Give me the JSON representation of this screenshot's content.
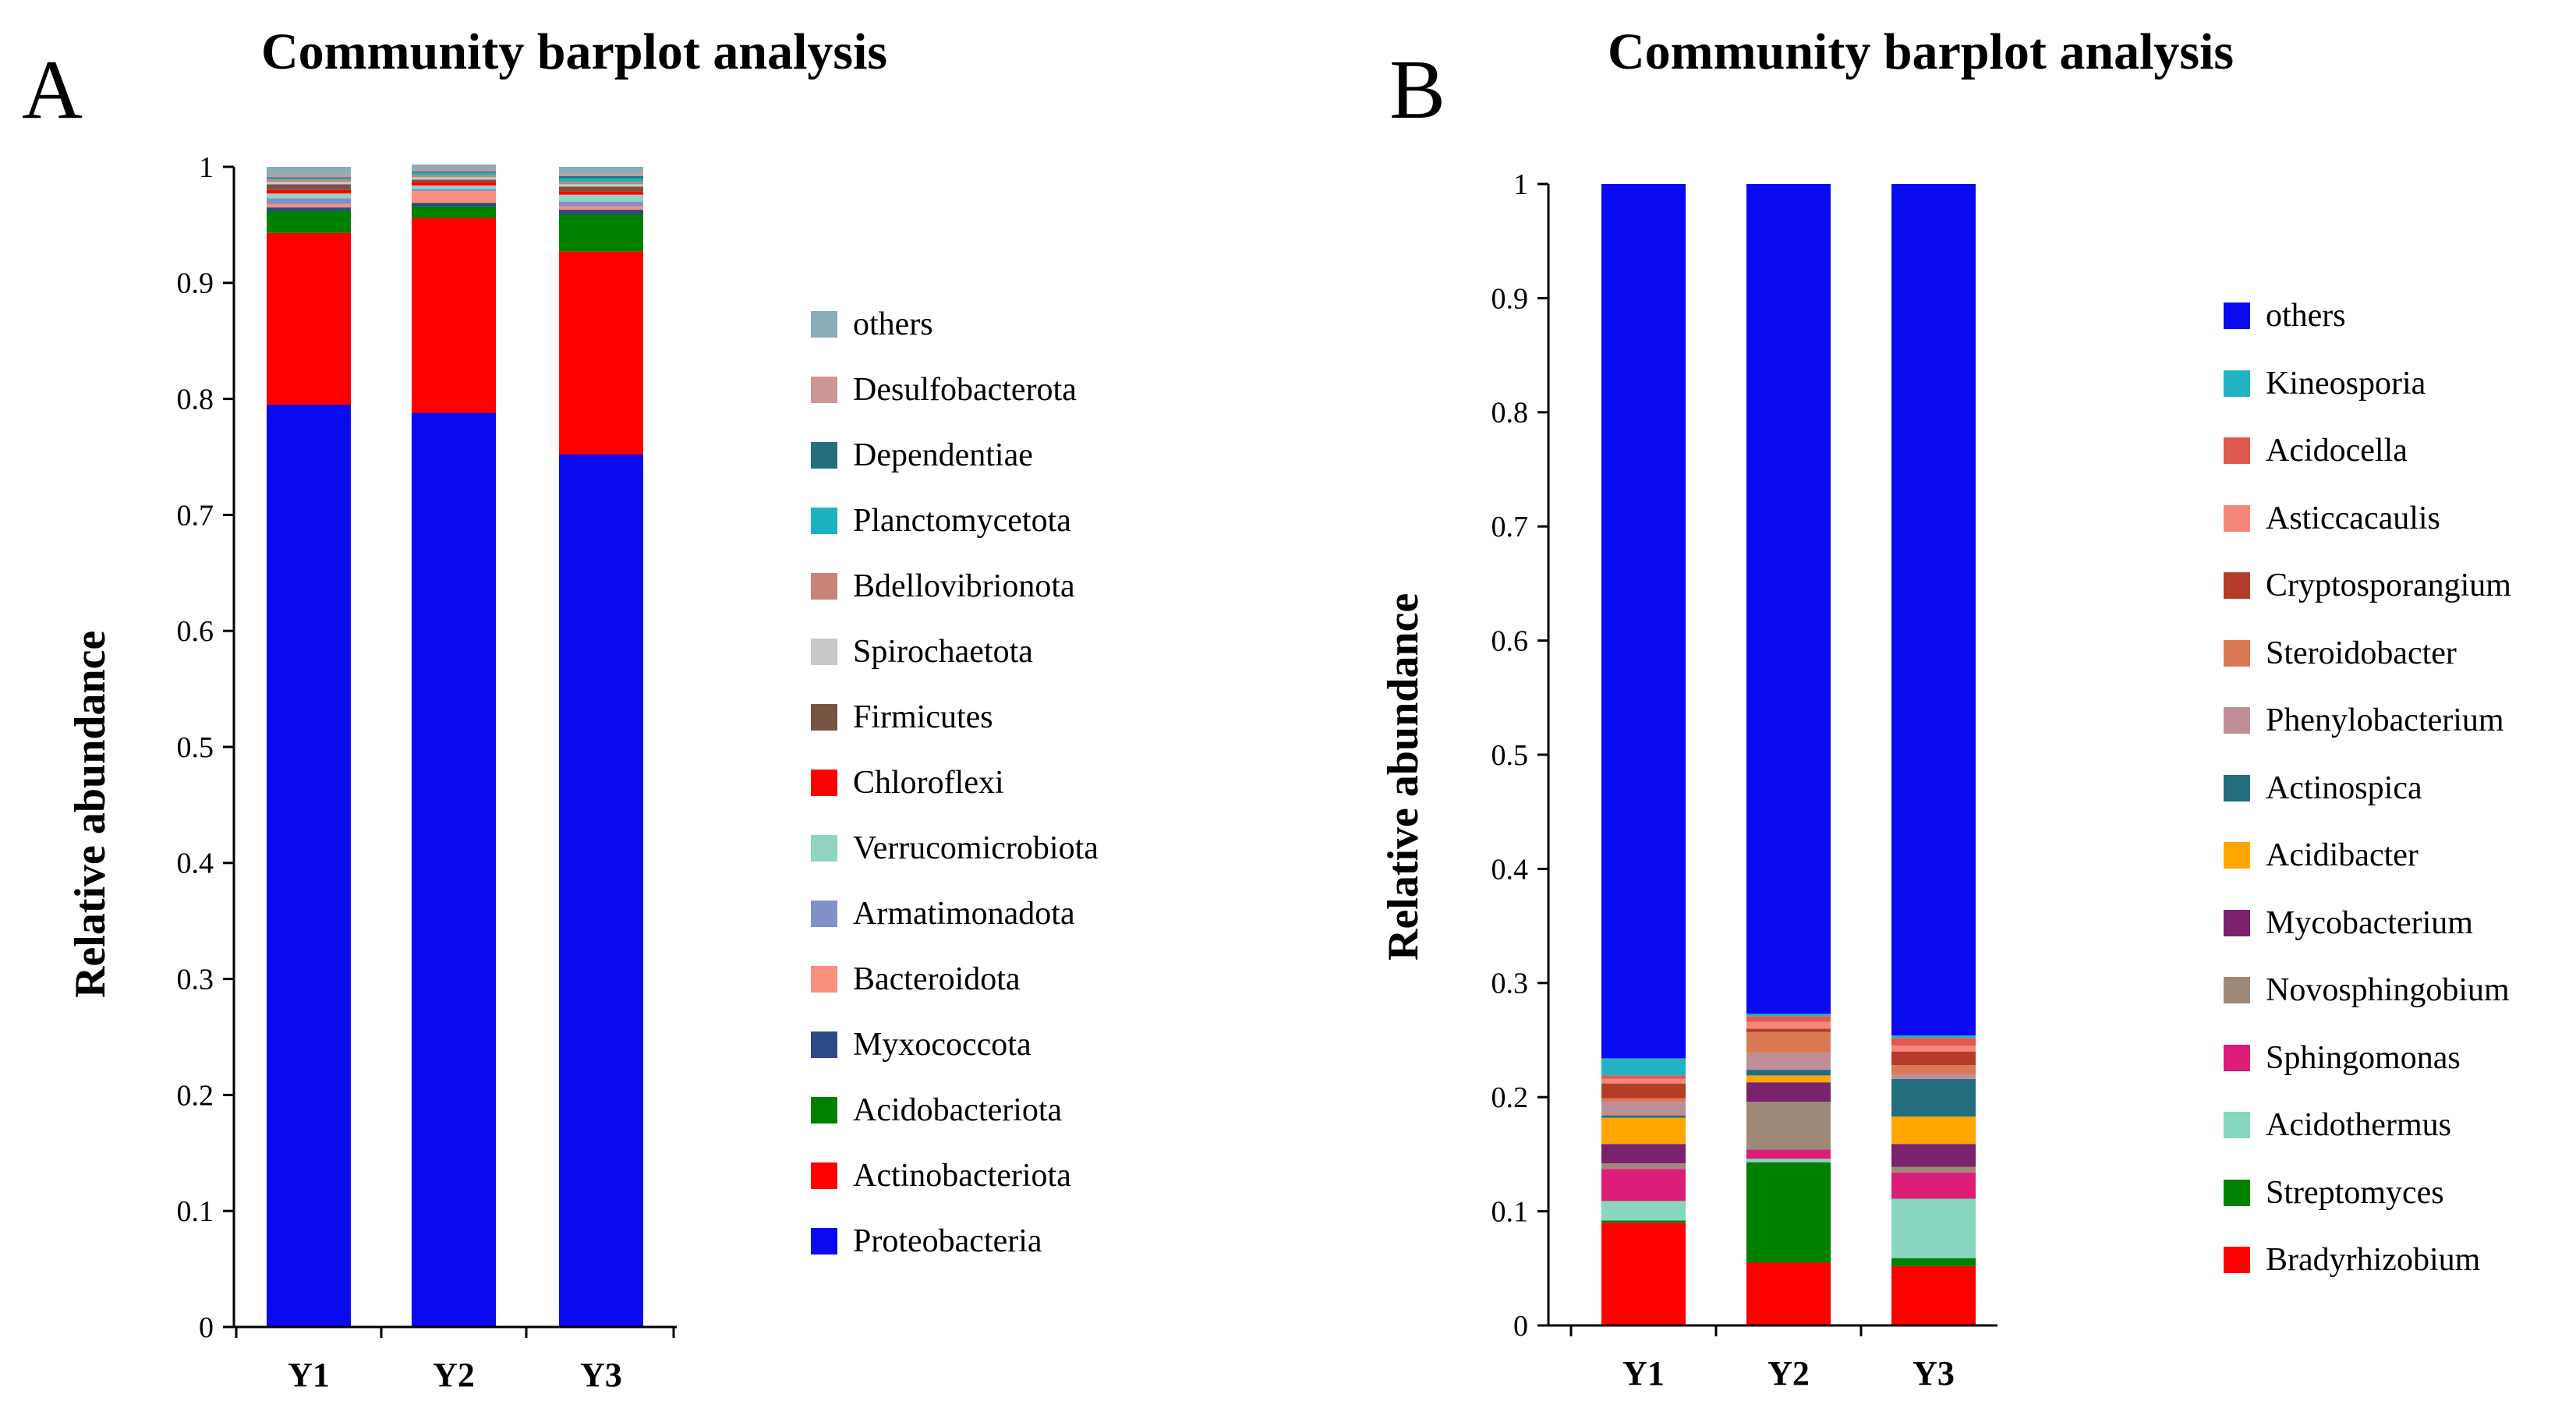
{
  "chart_data": [
    {
      "panel": "A",
      "type": "bar",
      "stacked": true,
      "title": "Community barplot analysis",
      "xlabel": "",
      "ylabel": "Relative abundance",
      "ylim": [
        0,
        1
      ],
      "yticks": [
        "0",
        "0.1",
        "0.2",
        "0.3",
        "0.4",
        "0.5",
        "0.6",
        "0.7",
        "0.8",
        "0.9",
        "1"
      ],
      "categories": [
        "Y1",
        "Y2",
        "Y3"
      ],
      "series": [
        {
          "name": "Proteobacteria",
          "color": "#0a0af0",
          "values": [
            0.795,
            0.788,
            0.752
          ]
        },
        {
          "name": "Actinobacteriota",
          "color": "#ff0000",
          "values": [
            0.148,
            0.168,
            0.175
          ]
        },
        {
          "name": "Acidobacteriota",
          "color": "#008000",
          "values": [
            0.019,
            0.01,
            0.032
          ]
        },
        {
          "name": "Myxococcota",
          "color": "#2c4a86",
          "values": [
            0.003,
            0.003,
            0.004
          ]
        },
        {
          "name": "Bacteroidota",
          "color": "#f7907e",
          "values": [
            0.003,
            0.01,
            0.003
          ]
        },
        {
          "name": "Armatimonadota",
          "color": "#8290c8",
          "values": [
            0.005,
            0.002,
            0.004
          ]
        },
        {
          "name": "Verrucomicrobiota",
          "color": "#8fd5c2",
          "values": [
            0.004,
            0.003,
            0.006
          ]
        },
        {
          "name": "Chloroflexi",
          "color": "#ff0000",
          "values": [
            0.003,
            0.003,
            0.003
          ]
        },
        {
          "name": "Firmicutes",
          "color": "#775342",
          "values": [
            0.005,
            0.002,
            0.004
          ]
        },
        {
          "name": "Spirochaetota",
          "color": "#c8c8c8",
          "values": [
            0.002,
            0.002,
            0.002
          ]
        },
        {
          "name": "Bdellovibrionota",
          "color": "#c98479",
          "values": [
            0.002,
            0.002,
            0.002
          ]
        },
        {
          "name": "Planctomycetota",
          "color": "#1bb3be",
          "values": [
            0.001,
            0.002,
            0.003
          ]
        },
        {
          "name": "Dependentiae",
          "color": "#246f7e",
          "values": [
            0.001,
            0.001,
            0.002
          ]
        },
        {
          "name": "Desulfobacterota",
          "color": "#cc9696",
          "values": [
            0.002,
            0.002,
            0.002
          ]
        },
        {
          "name": "others",
          "color": "#8aadb8",
          "values": [
            0.007,
            0.004,
            0.006
          ]
        }
      ]
    },
    {
      "panel": "B",
      "type": "bar",
      "stacked": true,
      "title": "Community barplot analysis",
      "xlabel": "",
      "ylabel": "Relative abundance",
      "ylim": [
        0,
        1
      ],
      "yticks": [
        "0",
        "0.1",
        "0.2",
        "0.3",
        "0.4",
        "0.5",
        "0.6",
        "0.7",
        "0.8",
        "0.9",
        "1"
      ],
      "categories": [
        "Y1",
        "Y2",
        "Y3"
      ],
      "series": [
        {
          "name": "Bradyrhizobium",
          "color": "#ff0000",
          "values": [
            0.09,
            0.055,
            0.052
          ]
        },
        {
          "name": "Streptomyces",
          "color": "#008000",
          "values": [
            0.002,
            0.088,
            0.007
          ]
        },
        {
          "name": "Acidothermus",
          "color": "#86d6c0",
          "values": [
            0.017,
            0.003,
            0.052
          ]
        },
        {
          "name": "Sphingomonas",
          "color": "#dc1e78",
          "values": [
            0.028,
            0.008,
            0.023
          ]
        },
        {
          "name": "Novosphingobium",
          "color": "#9e8878",
          "values": [
            0.005,
            0.042,
            0.005
          ]
        },
        {
          "name": "Mycobacterium",
          "color": "#7a226e",
          "values": [
            0.017,
            0.017,
            0.02
          ]
        },
        {
          "name": "Acidibacter",
          "color": "#ffa600",
          "values": [
            0.023,
            0.006,
            0.024
          ]
        },
        {
          "name": "Actinospica",
          "color": "#236e7e",
          "values": [
            0.002,
            0.005,
            0.033
          ]
        },
        {
          "name": "Phenylobacterium",
          "color": "#c08e96",
          "values": [
            0.012,
            0.015,
            0.004
          ]
        },
        {
          "name": "Steroidobacter",
          "color": "#d97a54",
          "values": [
            0.003,
            0.018,
            0.008
          ]
        },
        {
          "name": "Cryptosporangium",
          "color": "#b43c28",
          "values": [
            0.013,
            0.003,
            0.012
          ]
        },
        {
          "name": "Asticcacaulis",
          "color": "#f7867a",
          "values": [
            0.004,
            0.006,
            0.005
          ]
        },
        {
          "name": "Acidocella",
          "color": "#e05a50",
          "values": [
            0.003,
            0.005,
            0.007
          ]
        },
        {
          "name": "Kineosporia",
          "color": "#23b2c2",
          "values": [
            0.015,
            0.002,
            0.002
          ]
        },
        {
          "name": "others",
          "color": "#0a0af0",
          "values": [
            0.766,
            0.727,
            0.746
          ]
        }
      ]
    }
  ]
}
